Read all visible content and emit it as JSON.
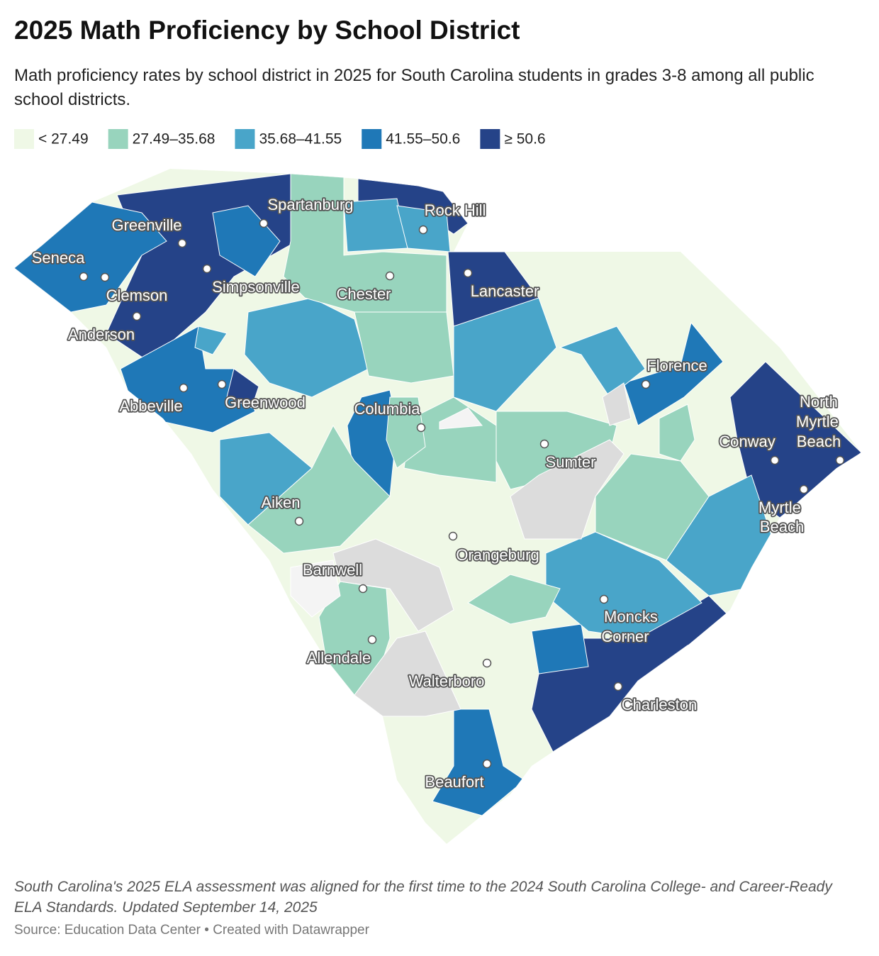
{
  "title": "2025 Math Proficiency by School District",
  "subtitle": "Math proficiency rates by school district in 2025 for South Carolina students in grades 3-8 among all public school districts.",
  "legend": [
    {
      "label": "< 27.49",
      "color": "#eff8e6"
    },
    {
      "label": "27.49–35.68",
      "color": "#98d4bd"
    },
    {
      "label": "35.68–41.55",
      "color": "#49a5c9"
    },
    {
      "label": "41.55–50.6",
      "color": "#1f78b7"
    },
    {
      "label": "≥ 50.6",
      "color": "#254388"
    }
  ],
  "cities": [
    "Spartanburg",
    "Rock Hill",
    "Greenville",
    "Seneca",
    "Clemson",
    "Simpsonville",
    "Chester",
    "Lancaster",
    "Anderson",
    "Florence",
    "Abbeville",
    "Greenwood",
    "Columbia",
    "Sumter",
    "North Myrtle Beach",
    "Conway",
    "Myrtle Beach",
    "Aiken",
    "Orangeburg",
    "Barnwell",
    "Moncks Corner",
    "Allendale",
    "Walterboro",
    "Charleston",
    "Beaufort"
  ],
  "note": "South Carolina's 2025 ELA assessment was aligned for the first time to the 2024 South Carolina College- and Career-Ready ELA Standards. Updated September 14, 2025",
  "source": "Source: Education Data Center • Created with Datawrapper"
}
